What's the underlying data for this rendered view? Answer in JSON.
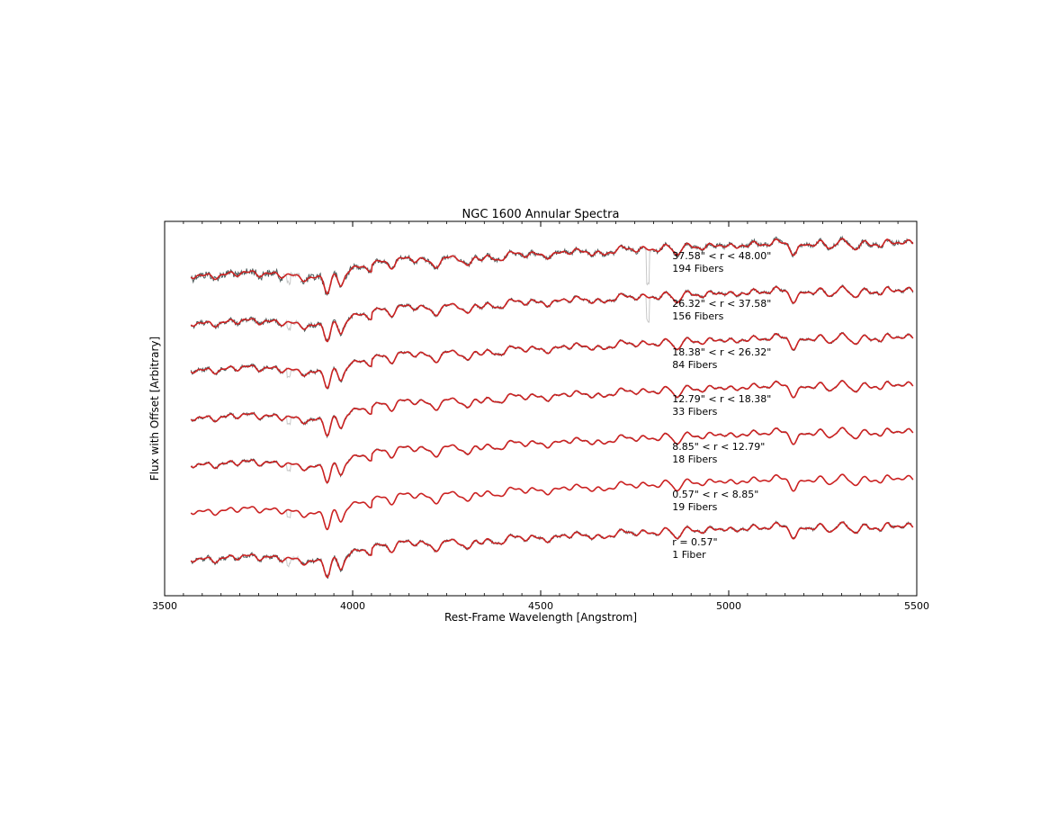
{
  "chart_data": {
    "type": "line",
    "title": "NGC 1600 Annular Spectra",
    "xlabel": "Rest-Frame Wavelength [Angstrom]",
    "ylabel": "Flux with Offset [Arbitrary]",
    "xlim": [
      3500,
      5500
    ],
    "xticks": [
      3500,
      4000,
      4500,
      5000,
      5500
    ],
    "y_ticks_shown": false,
    "x_range_plotted": [
      3570,
      5490
    ],
    "colors": {
      "observed": "#4a5a5a",
      "model": "#cc2222",
      "masked": "#c8c8c8"
    },
    "masked_regions": [
      [
        3815,
        3860
      ],
      [
        4255,
        4285
      ],
      [
        4775,
        4795
      ]
    ],
    "spectral_features": [
      {
        "name": "CaII K",
        "x": 3934,
        "depth": 0.9
      },
      {
        "name": "CaII H",
        "x": 3969,
        "depth": 0.9
      },
      {
        "name": "G band",
        "x": 4304,
        "depth": 0.8
      },
      {
        "name": "Hbeta",
        "x": 4861,
        "depth": 0.45
      },
      {
        "name": "Mgb",
        "x": 5175,
        "depth": 0.85
      },
      {
        "name": "Fe5270",
        "x": 5270,
        "depth": 0.3
      },
      {
        "name": "Fe5335",
        "x": 5335,
        "depth": 0.3
      }
    ],
    "series": [
      {
        "label_line1": "37.58\" < r < 48.00\"",
        "label_line2": "194 Fibers",
        "noise": 1.0,
        "sky_line": true
      },
      {
        "label_line1": "26.32\" < r < 37.58\"",
        "label_line2": "156 Fibers",
        "noise": 0.6,
        "sky_line": true
      },
      {
        "label_line1": "18.38\" < r < 26.32\"",
        "label_line2": "84 Fibers",
        "noise": 0.45,
        "sky_line": false
      },
      {
        "label_line1": "12.79\" < r < 18.38\"",
        "label_line2": "33 Fibers",
        "noise": 0.35,
        "sky_line": false
      },
      {
        "label_line1": "8.85\" < r < 12.79\"",
        "label_line2": "18 Fibers",
        "noise": 0.3,
        "sky_line": false
      },
      {
        "label_line1": "0.57\" < r < 8.85\"",
        "label_line2": "19 Fibers",
        "noise": 0.05,
        "sky_line": false
      },
      {
        "label_line1": "r = 0.57\"",
        "label_line2": "1 Fiber",
        "noise": 0.55,
        "sky_line": false
      }
    ],
    "label_x": 4850
  }
}
